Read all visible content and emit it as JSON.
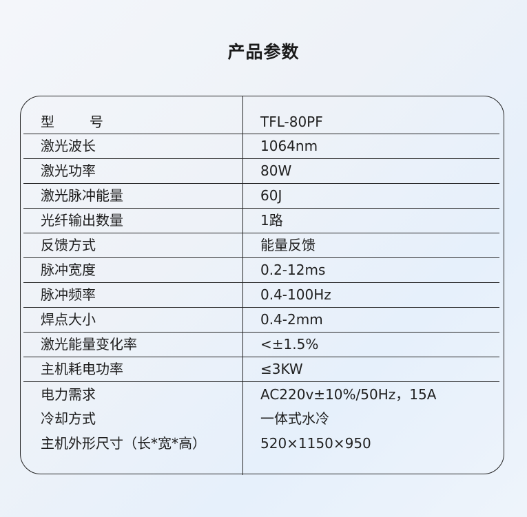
{
  "title": "产品参数",
  "rows": [
    {
      "label": "型        号",
      "value": "TFL-80PF"
    },
    {
      "label": "激光波长",
      "value": "1064nm"
    },
    {
      "label": "激光功率",
      "value": "80W"
    },
    {
      "label": "激光脉冲能量",
      "value": "60J"
    },
    {
      "label": "光纤输出数量",
      "value": "1路"
    },
    {
      "label": "反馈方式",
      "value": "能量反馈"
    },
    {
      "label": "脉冲宽度",
      "value": "0.2-12ms"
    },
    {
      "label": "脉冲频率",
      "value": "0.4-100Hz"
    },
    {
      "label": "焊点大小",
      "value": "0.4-2mm"
    },
    {
      "label": "激光能量变化率",
      "value": "<±1.5%"
    },
    {
      "label": "主机耗电功率",
      "value": "≤3KW"
    },
    {
      "label": "电力需求",
      "value": "AC220v±10%/50Hz，15A"
    },
    {
      "label": "冷却方式",
      "value": "一体式水冷"
    },
    {
      "label": "主机外形尺寸（长*宽*高）",
      "value": "520×1150×950"
    }
  ]
}
